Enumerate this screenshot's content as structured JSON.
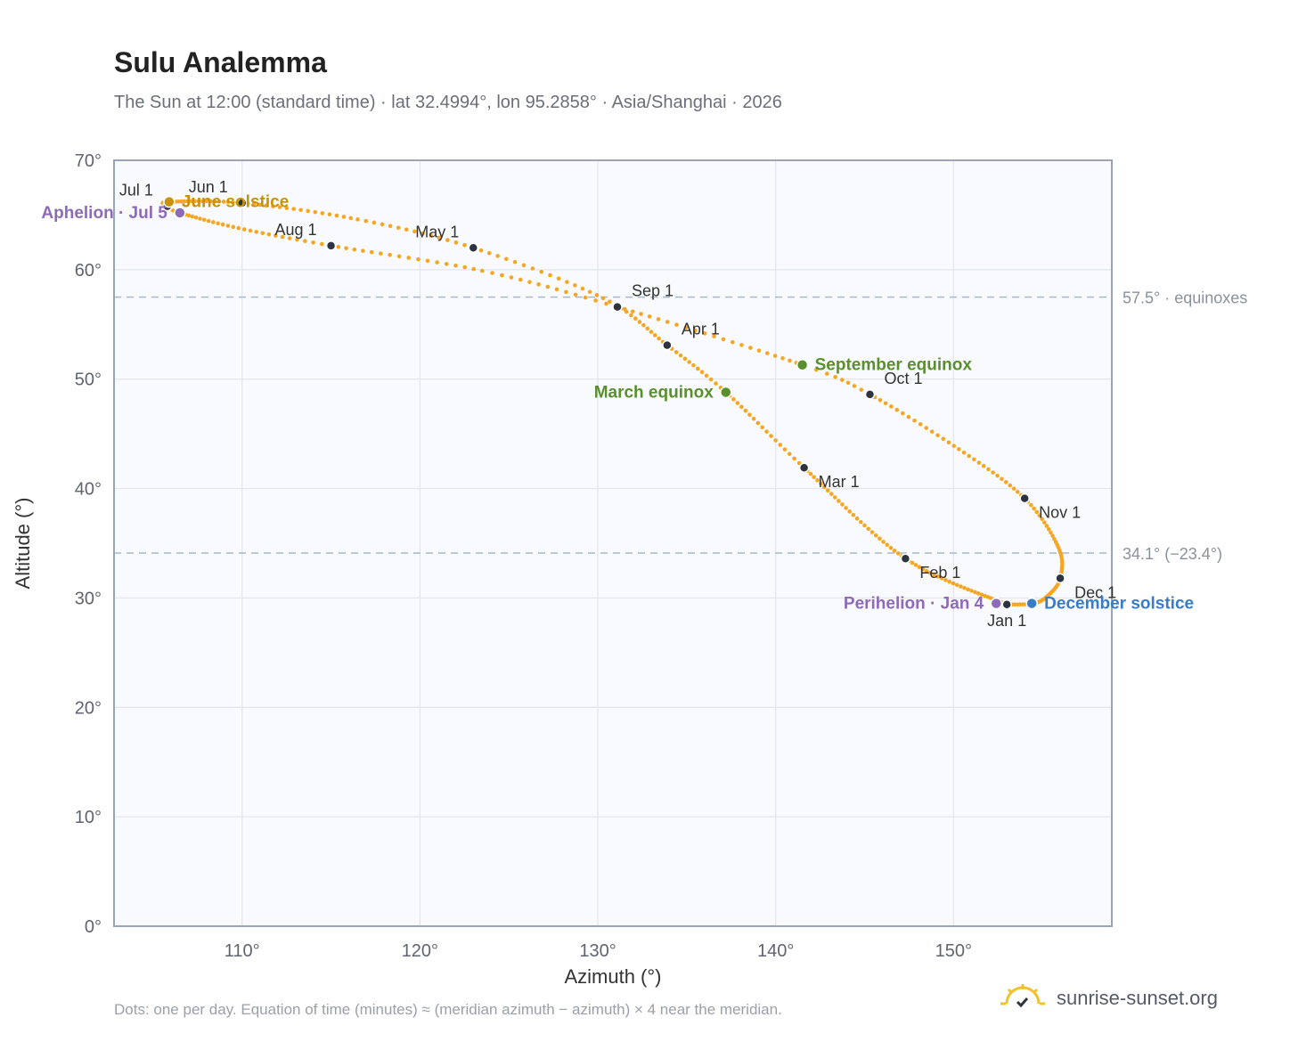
{
  "header": {
    "title": "Sulu Analemma",
    "subtitle": "The Sun at 12:00 (standard time) · lat 32.4994°, lon 95.2858° · Asia/Shanghai · 2026"
  },
  "footer": {
    "note": "Dots: one per day. Equation of time (minutes) ≈ (meridian azimuth − azimuth) × 4 near the meridian.",
    "brand": "sunrise-sunset.org"
  },
  "colors": {
    "curve": "#f5a623",
    "month_dot": "#2d3440",
    "equinox": "#5a8f2e",
    "december_solstice": "#3a7bc8",
    "june_solstice": "#c9920a",
    "apsides": "#8e6bb8",
    "refline": "#a8b8c8",
    "plot_bg": "#f8fafd",
    "grid": "#e2e6ec"
  },
  "chart_data": {
    "type": "scatter",
    "xlabel": "Azimuth (°)",
    "ylabel": "Altitude (°)",
    "xlim": [
      102.8,
      158.9
    ],
    "ylim": [
      0,
      70
    ],
    "x_ticks": [
      "110°",
      "120°",
      "130°",
      "140°",
      "150°"
    ],
    "x_tick_values": [
      110,
      120,
      130,
      140,
      150
    ],
    "y_ticks": [
      "0°",
      "10°",
      "20°",
      "30°",
      "40°",
      "50°",
      "60°",
      "70°"
    ],
    "y_tick_values": [
      0,
      10,
      20,
      30,
      40,
      50,
      60,
      70
    ],
    "grid": true,
    "reference_lines": [
      {
        "y": 57.5,
        "label": "57.5° · equinoxes"
      },
      {
        "y": 34.1,
        "label": "34.1° (−23.4°)"
      }
    ],
    "path": [
      {
        "day": 1,
        "x": 153.0,
        "y": 29.4
      },
      {
        "day": 32,
        "x": 147.3,
        "y": 33.6
      },
      {
        "day": 60,
        "x": 141.6,
        "y": 41.9
      },
      {
        "day": 78,
        "x": 137.2,
        "y": 48.8
      },
      {
        "day": 91,
        "x": 133.9,
        "y": 53.1
      },
      {
        "day": 105,
        "x": 130.3,
        "y": 57.4
      },
      {
        "day": 121,
        "x": 123.0,
        "y": 62.0
      },
      {
        "day": 135,
        "x": 116.5,
        "y": 64.6
      },
      {
        "day": 152,
        "x": 110.0,
        "y": 66.1
      },
      {
        "day": 172,
        "x": 105.9,
        "y": 66.2
      },
      {
        "day": 182,
        "x": 105.8,
        "y": 65.8
      },
      {
        "day": 186,
        "x": 106.5,
        "y": 65.2
      },
      {
        "day": 200,
        "x": 109.8,
        "y": 63.8
      },
      {
        "day": 213,
        "x": 115.0,
        "y": 62.2
      },
      {
        "day": 230,
        "x": 123.5,
        "y": 59.9
      },
      {
        "day": 244,
        "x": 131.1,
        "y": 56.6
      },
      {
        "day": 266,
        "x": 141.5,
        "y": 51.3
      },
      {
        "day": 274,
        "x": 145.3,
        "y": 48.6
      },
      {
        "day": 290,
        "x": 150.3,
        "y": 43.6
      },
      {
        "day": 305,
        "x": 154.0,
        "y": 39.1
      },
      {
        "day": 320,
        "x": 155.9,
        "y": 34.6
      },
      {
        "day": 335,
        "x": 156.0,
        "y": 31.8
      },
      {
        "day": 345,
        "x": 155.3,
        "y": 30.2
      },
      {
        "day": 355,
        "x": 154.5,
        "y": 29.5
      },
      {
        "day": 365,
        "x": 153.1,
        "y": 29.4
      }
    ],
    "month_markers": [
      {
        "label": "Jan 1",
        "x": 153.0,
        "y": 29.4,
        "pos": "below"
      },
      {
        "label": "Feb 1",
        "x": 147.3,
        "y": 33.6,
        "pos": "below-right"
      },
      {
        "label": "Mar 1",
        "x": 141.6,
        "y": 41.9,
        "pos": "below-right"
      },
      {
        "label": "Apr 1",
        "x": 133.9,
        "y": 53.1,
        "pos": "above-right"
      },
      {
        "label": "May 1",
        "x": 123.0,
        "y": 62.0,
        "pos": "above-left"
      },
      {
        "label": "Jun 1",
        "x": 110.0,
        "y": 66.1,
        "pos": "above-left"
      },
      {
        "label": "Jul 1",
        "x": 105.8,
        "y": 65.8,
        "pos": "above-left"
      },
      {
        "label": "Aug 1",
        "x": 115.0,
        "y": 62.2,
        "pos": "above-left"
      },
      {
        "label": "Sep 1",
        "x": 131.1,
        "y": 56.6,
        "pos": "above-right"
      },
      {
        "label": "Oct 1",
        "x": 145.3,
        "y": 48.6,
        "pos": "above-right"
      },
      {
        "label": "Nov 1",
        "x": 154.0,
        "y": 39.1,
        "pos": "below-right"
      },
      {
        "label": "Dec 1",
        "x": 156.0,
        "y": 31.8,
        "pos": "below-right"
      }
    ],
    "events": [
      {
        "label": "March equinox",
        "x": 137.2,
        "y": 48.8,
        "color_key": "equinox",
        "pos": "left"
      },
      {
        "label": "September equinox",
        "x": 141.5,
        "y": 51.3,
        "color_key": "equinox",
        "pos": "right"
      },
      {
        "label": "June solstice",
        "x": 105.9,
        "y": 66.2,
        "color_key": "june_solstice",
        "pos": "right"
      },
      {
        "label": "December solstice",
        "x": 154.4,
        "y": 29.5,
        "color_key": "december_solstice",
        "pos": "right"
      },
      {
        "label": "Aphelion · Jul 5",
        "x": 106.5,
        "y": 65.2,
        "color_key": "apsides",
        "pos": "left"
      },
      {
        "label": "Perihelion · Jan 4",
        "x": 152.4,
        "y": 29.5,
        "color_key": "apsides",
        "pos": "left"
      }
    ]
  }
}
